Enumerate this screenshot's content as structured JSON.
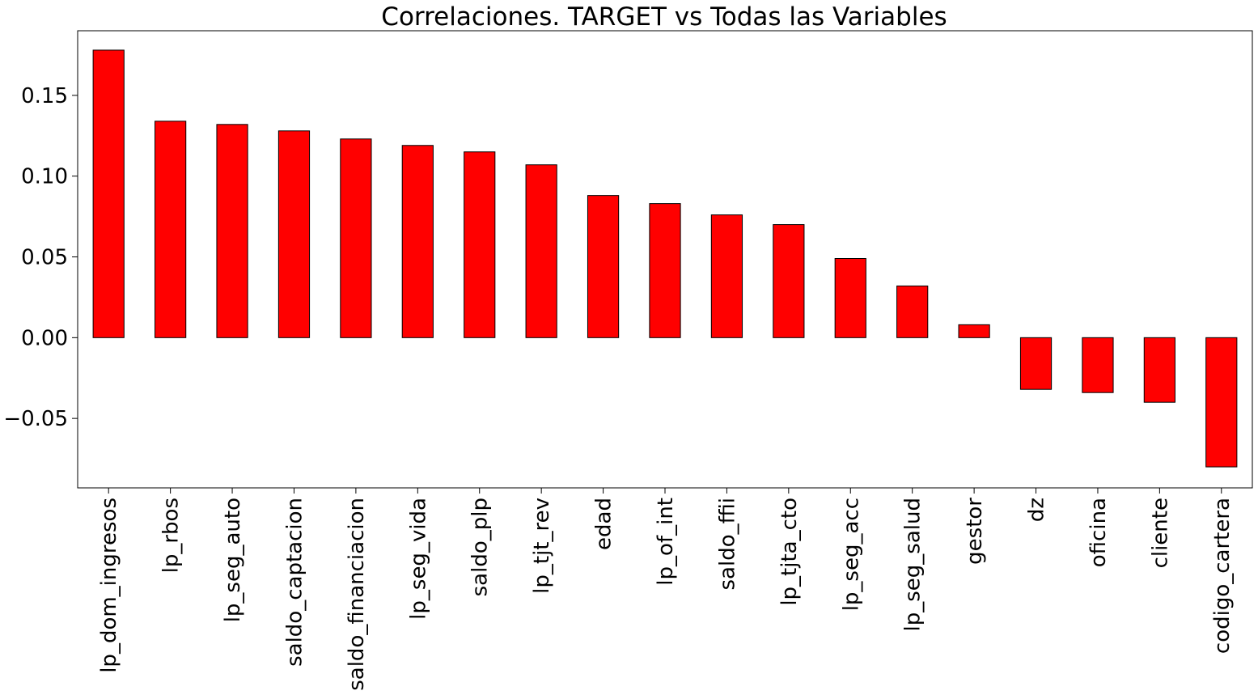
{
  "chart_data": {
    "type": "bar",
    "title": "Correlaciones. TARGET vs Todas las Variables",
    "xlabel": "",
    "ylabel": "",
    "bar_color": "#ff0000",
    "bar_edge_color": "#000000",
    "grid": false,
    "legend": "none",
    "ylim": [
      -0.093,
      0.19
    ],
    "yticks": [
      -0.05,
      0.0,
      0.05,
      0.1,
      0.15
    ],
    "ytick_labels": [
      "−0.05",
      "0.00",
      "0.05",
      "0.10",
      "0.15"
    ],
    "categories": [
      "lp_dom_ingresos",
      "lp_rbos",
      "lp_seg_auto",
      "saldo_captacion",
      "saldo_financiacion",
      "lp_seg_vida",
      "saldo_plp",
      "lp_tjt_rev",
      "edad",
      "lp_of_int",
      "saldo_ffii",
      "lp_tjta_cto",
      "lp_seg_acc",
      "lp_seg_salud",
      "gestor",
      "dz",
      "oficina",
      "cliente",
      "codigo_cartera"
    ],
    "values": [
      0.178,
      0.134,
      0.132,
      0.128,
      0.123,
      0.119,
      0.115,
      0.107,
      0.088,
      0.083,
      0.076,
      0.07,
      0.049,
      0.032,
      0.008,
      -0.032,
      -0.034,
      -0.04,
      -0.08
    ]
  }
}
